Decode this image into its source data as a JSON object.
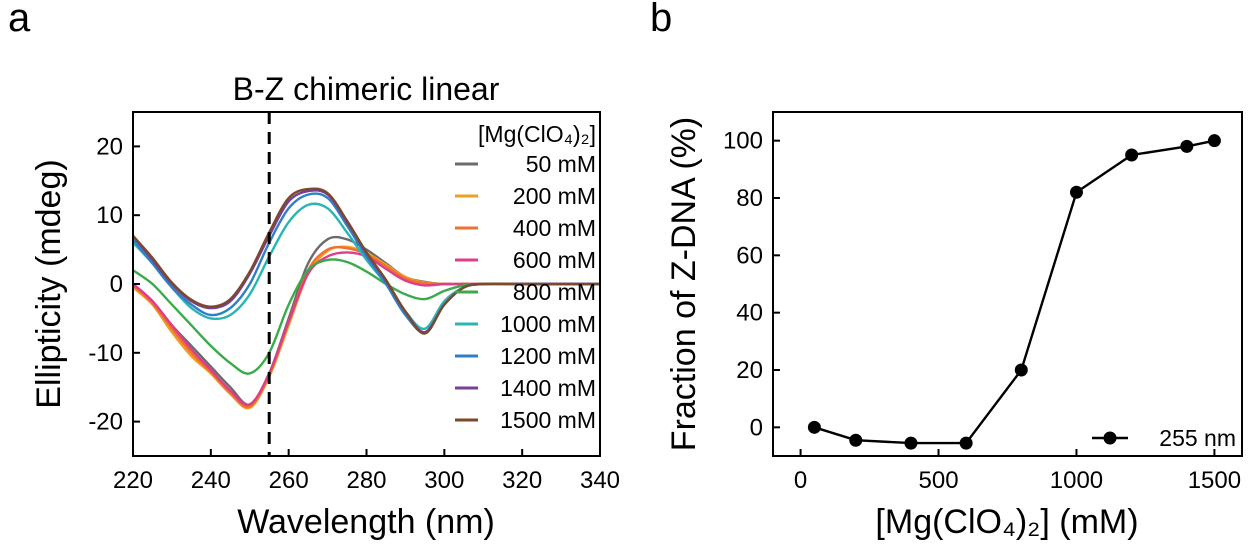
{
  "panels": {
    "a": "a",
    "b": "b"
  },
  "chart_data": [
    {
      "type": "line",
      "title": "B-Z chimeric linear",
      "xlabel": "Wavelength (nm)",
      "ylabel": "Ellipticity (mdeg)",
      "xlim": [
        220,
        340
      ],
      "ylim": [
        -25,
        25
      ],
      "xticks": [
        220,
        240,
        260,
        280,
        300,
        320,
        340
      ],
      "yticks": [
        -20,
        -10,
        0,
        10,
        20
      ],
      "ytick_labels": [
        "-20",
        "-10",
        "0",
        "10",
        "20"
      ],
      "reference_line_x": 255,
      "legend_title": "[Mg(ClO₄)₂]",
      "legend_position": "top-right",
      "x": [
        220,
        225,
        230,
        235,
        240,
        245,
        250,
        255,
        260,
        265,
        270,
        275,
        280,
        285,
        290,
        295,
        300,
        305,
        310,
        320,
        330,
        340
      ],
      "series": [
        {
          "name": "50 mM",
          "color": "#6b6b6b",
          "values": [
            0,
            -2.5,
            -6,
            -9,
            -12,
            -15,
            -17.5,
            -13,
            -5,
            3,
            6.5,
            6.5,
            5,
            3,
            1,
            0.3,
            0,
            0,
            0,
            0,
            0,
            0
          ]
        },
        {
          "name": "200 mM",
          "color": "#f0a020",
          "values": [
            -0.5,
            -3,
            -7,
            -10.5,
            -13,
            -16,
            -18,
            -13.5,
            -6,
            1.5,
            4.8,
            5.4,
            4.5,
            2.8,
            1,
            0.2,
            0,
            0,
            0,
            0,
            0,
            0
          ]
        },
        {
          "name": "400 mM",
          "color": "#f07030",
          "values": [
            -0.2,
            -2.8,
            -6.5,
            -10,
            -12.8,
            -15.8,
            -17.8,
            -13.2,
            -5.5,
            2,
            5,
            5.2,
            4.3,
            2.6,
            0.8,
            0.1,
            0,
            0,
            0,
            0,
            0,
            0
          ]
        },
        {
          "name": "600 mM",
          "color": "#e03c8a",
          "values": [
            0,
            -2.5,
            -6,
            -9.5,
            -12.5,
            -15.5,
            -17.5,
            -13,
            -5.5,
            1.5,
            4,
            4.6,
            4,
            2.2,
            0.5,
            -0.2,
            0,
            0,
            0,
            0,
            0,
            0
          ]
        },
        {
          "name": "800 mM",
          "color": "#3aaa4a",
          "values": [
            2,
            0,
            -3,
            -6,
            -9,
            -11.5,
            -13,
            -10,
            -3,
            2,
            3.5,
            3.2,
            1.8,
            0,
            -1.5,
            -2.2,
            -1,
            -0.2,
            0,
            0,
            0,
            0
          ]
        },
        {
          "name": "1000 mM",
          "color": "#2ab5b5",
          "values": [
            6,
            3,
            -0.5,
            -3.5,
            -5,
            -4.5,
            -1.5,
            4,
            9,
            11.5,
            11,
            7.5,
            3.5,
            0,
            -4,
            -6.5,
            -2.5,
            -0.5,
            0,
            0,
            0,
            0
          ]
        },
        {
          "name": "1200 mM",
          "color": "#2f7fc8",
          "values": [
            6.5,
            3,
            -0.5,
            -3,
            -4.5,
            -3.5,
            0,
            6,
            11,
            13,
            12.5,
            8.5,
            4,
            0,
            -4.5,
            -7,
            -3,
            -0.5,
            0,
            0,
            0,
            0
          ]
        },
        {
          "name": "1400 mM",
          "color": "#7a3d9a",
          "values": [
            7,
            3.5,
            0,
            -2.5,
            -3.5,
            -2.5,
            1.5,
            7,
            12,
            13.5,
            13,
            9,
            4.5,
            0.5,
            -4,
            -7,
            -3,
            -0.5,
            0,
            0,
            0,
            0
          ]
        },
        {
          "name": "1500 mM",
          "color": "#7a4a2a",
          "values": [
            7,
            3.8,
            0.2,
            -2.3,
            -3.3,
            -2.2,
            1.8,
            7.5,
            12.5,
            13.8,
            13.2,
            9.2,
            4.6,
            0.6,
            -4,
            -7.2,
            -3,
            -0.5,
            0,
            0,
            0,
            0
          ]
        }
      ]
    },
    {
      "type": "line",
      "xlabel": "[Mg(ClO₄)₂] (mM)",
      "ylabel": "Fraction of Z-DNA (%)",
      "xlim": [
        -100,
        1600
      ],
      "ylim": [
        -10,
        110
      ],
      "xticks": [
        0,
        500,
        1000,
        1500
      ],
      "yticks": [
        0,
        20,
        40,
        60,
        80,
        100
      ],
      "legend_position": "bottom-right",
      "series": [
        {
          "name": "255 nm",
          "color": "#000000",
          "x": [
            50,
            200,
            400,
            600,
            800,
            1000,
            1200,
            1400,
            1500
          ],
          "values": [
            0,
            -4.5,
            -5.5,
            -5.5,
            20,
            82,
            95,
            98,
            100
          ]
        }
      ]
    }
  ]
}
